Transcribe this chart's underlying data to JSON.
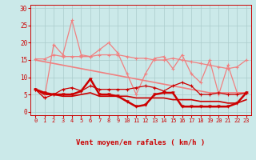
{
  "x": [
    0,
    1,
    2,
    3,
    4,
    5,
    6,
    7,
    8,
    9,
    10,
    11,
    12,
    13,
    14,
    15,
    16,
    17,
    18,
    19,
    20,
    21,
    22,
    23
  ],
  "line_rafales_y": [
    6.5,
    4.0,
    19.5,
    16.5,
    26.5,
    16.5,
    16.0,
    18.0,
    20.0,
    17.0,
    11.0,
    5.0,
    11.0,
    15.5,
    16.0,
    12.5,
    16.5,
    11.0,
    8.5,
    15.0,
    5.0,
    13.5,
    5.5,
    5.5
  ],
  "line_moyen_y": [
    6.5,
    4.0,
    5.0,
    6.5,
    7.0,
    6.0,
    7.5,
    6.5,
    6.5,
    6.5,
    6.5,
    7.0,
    7.5,
    7.0,
    6.0,
    7.5,
    8.5,
    7.5,
    5.0,
    5.0,
    5.5,
    5.0,
    5.0,
    5.5
  ],
  "line_flat_pink_y": [
    15.3,
    15.3,
    16.5,
    16.0,
    16.0,
    16.0,
    16.0,
    16.5,
    16.5,
    16.5,
    16.0,
    15.5,
    15.5,
    15.0,
    15.0,
    15.5,
    15.0,
    14.5,
    14.0,
    13.5,
    13.0,
    12.5,
    13.0,
    15.0
  ],
  "line_trend_pink_y": [
    15.0,
    14.5,
    14.0,
    13.5,
    13.0,
    12.5,
    12.0,
    11.5,
    11.0,
    10.5,
    10.0,
    9.5,
    9.0,
    8.5,
    8.0,
    7.5,
    7.0,
    6.5,
    6.0,
    5.5,
    5.5,
    5.5,
    5.5,
    5.5
  ],
  "line_bold_dark_y": [
    6.5,
    5.5,
    5.0,
    5.0,
    5.0,
    6.0,
    9.5,
    5.0,
    5.0,
    4.5,
    3.0,
    1.5,
    2.0,
    5.0,
    5.5,
    5.5,
    1.5,
    1.5,
    1.5,
    1.5,
    1.5,
    1.5,
    2.5,
    5.5
  ],
  "line_trend_dark_y": [
    6.5,
    5.0,
    5.0,
    4.5,
    4.5,
    5.0,
    5.5,
    4.5,
    4.5,
    4.5,
    4.5,
    4.0,
    4.0,
    4.0,
    4.0,
    3.5,
    3.5,
    3.5,
    3.0,
    3.0,
    3.0,
    2.5,
    2.5,
    3.5
  ],
  "color_light": "#F08080",
  "color_dark": "#CC0000",
  "bg_color": "#CBE9E9",
  "grid_color": "#AACCCC",
  "xlabel": "Vent moyen/en rafales ( km/h )",
  "ylim": [
    -1,
    31
  ],
  "xlim": [
    -0.5,
    23.5
  ],
  "yticks": [
    0,
    5,
    10,
    15,
    20,
    25,
    30
  ],
  "xticks": [
    0,
    1,
    2,
    3,
    4,
    5,
    6,
    7,
    8,
    9,
    10,
    11,
    12,
    13,
    14,
    15,
    16,
    17,
    18,
    19,
    20,
    21,
    22,
    23
  ],
  "directions": [
    "↙",
    "↙",
    "↙",
    "←",
    "←",
    "↙",
    "↙",
    "↓",
    "↙",
    "↓",
    "←",
    "←",
    "←",
    "→",
    "↗",
    "↑",
    "↗",
    "↗",
    "↗",
    "↘",
    "←",
    "←",
    "←",
    "↓"
  ]
}
